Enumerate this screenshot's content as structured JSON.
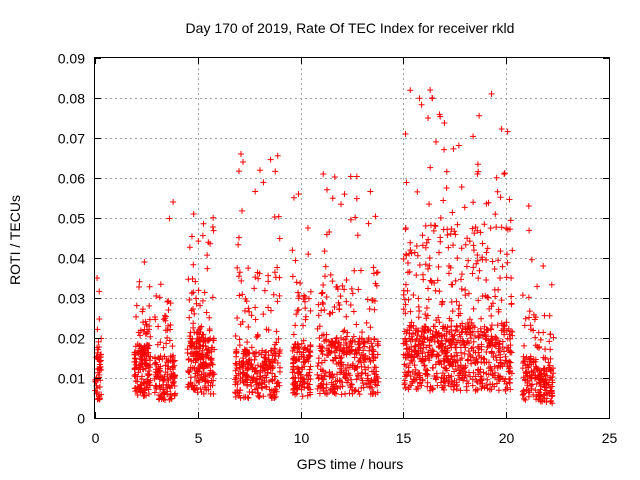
{
  "chart_data": {
    "type": "scatter",
    "title": "Day 170 of 2019, Rate Of TEC Index for receiver rkld",
    "xlabel": "GPS time / hours",
    "ylabel": "ROTI / TECUs",
    "xlim": [
      0,
      25
    ],
    "ylim": [
      0,
      0.09
    ],
    "xticks": [
      "0",
      "5",
      "10",
      "15",
      "20",
      "25"
    ],
    "yticks": [
      "0",
      "0.01",
      "0.02",
      "0.03",
      "0.04",
      "0.05",
      "0.06",
      "0.07",
      "0.08",
      "0.09"
    ],
    "grid": true,
    "marker": "+",
    "series_color": "#ff0000",
    "clusters": [
      {
        "x": [
          0.0,
          0.3
        ],
        "y_mode": 0.01,
        "y_max": 0.036,
        "n": 50
      },
      {
        "x": [
          1.9,
          2.7
        ],
        "y_mode": 0.012,
        "y_max": 0.039,
        "n": 160
      },
      {
        "x": [
          2.9,
          3.9
        ],
        "y_mode": 0.01,
        "y_max": 0.054,
        "n": 140
      },
      {
        "x": [
          4.5,
          5.8
        ],
        "y_mode": 0.013,
        "y_max": 0.051,
        "n": 230
      },
      {
        "x": [
          6.8,
          9.0
        ],
        "y_mode": 0.011,
        "y_max": 0.066,
        "n": 290
      },
      {
        "x": [
          9.6,
          10.5
        ],
        "y_mode": 0.012,
        "y_max": 0.057,
        "n": 150
      },
      {
        "x": [
          10.8,
          13.8
        ],
        "y_mode": 0.013,
        "y_max": 0.061,
        "n": 380
      },
      {
        "x": [
          15.0,
          20.3
        ],
        "y_mode": 0.015,
        "y_max": 0.082,
        "n": 820
      },
      {
        "x": [
          20.8,
          21.5
        ],
        "y_mode": 0.01,
        "y_max": 0.053,
        "n": 90
      },
      {
        "x": [
          21.5,
          22.3
        ],
        "y_mode": 0.008,
        "y_max": 0.038,
        "n": 110
      }
    ],
    "peaks": [
      {
        "x": 0.1,
        "y": 0.035
      },
      {
        "x": 2.4,
        "y": 0.039
      },
      {
        "x": 3.8,
        "y": 0.054
      },
      {
        "x": 4.8,
        "y": 0.051
      },
      {
        "x": 7.1,
        "y": 0.066
      },
      {
        "x": 7.2,
        "y": 0.064
      },
      {
        "x": 9.9,
        "y": 0.056
      },
      {
        "x": 11.1,
        "y": 0.061
      },
      {
        "x": 15.1,
        "y": 0.071
      },
      {
        "x": 16.3,
        "y": 0.082
      },
      {
        "x": 16.4,
        "y": 0.08
      },
      {
        "x": 16.2,
        "y": 0.075
      },
      {
        "x": 18.6,
        "y": 0.061
      },
      {
        "x": 19.9,
        "y": 0.061
      },
      {
        "x": 21.1,
        "y": 0.053
      },
      {
        "x": 21.8,
        "y": 0.038
      }
    ]
  }
}
